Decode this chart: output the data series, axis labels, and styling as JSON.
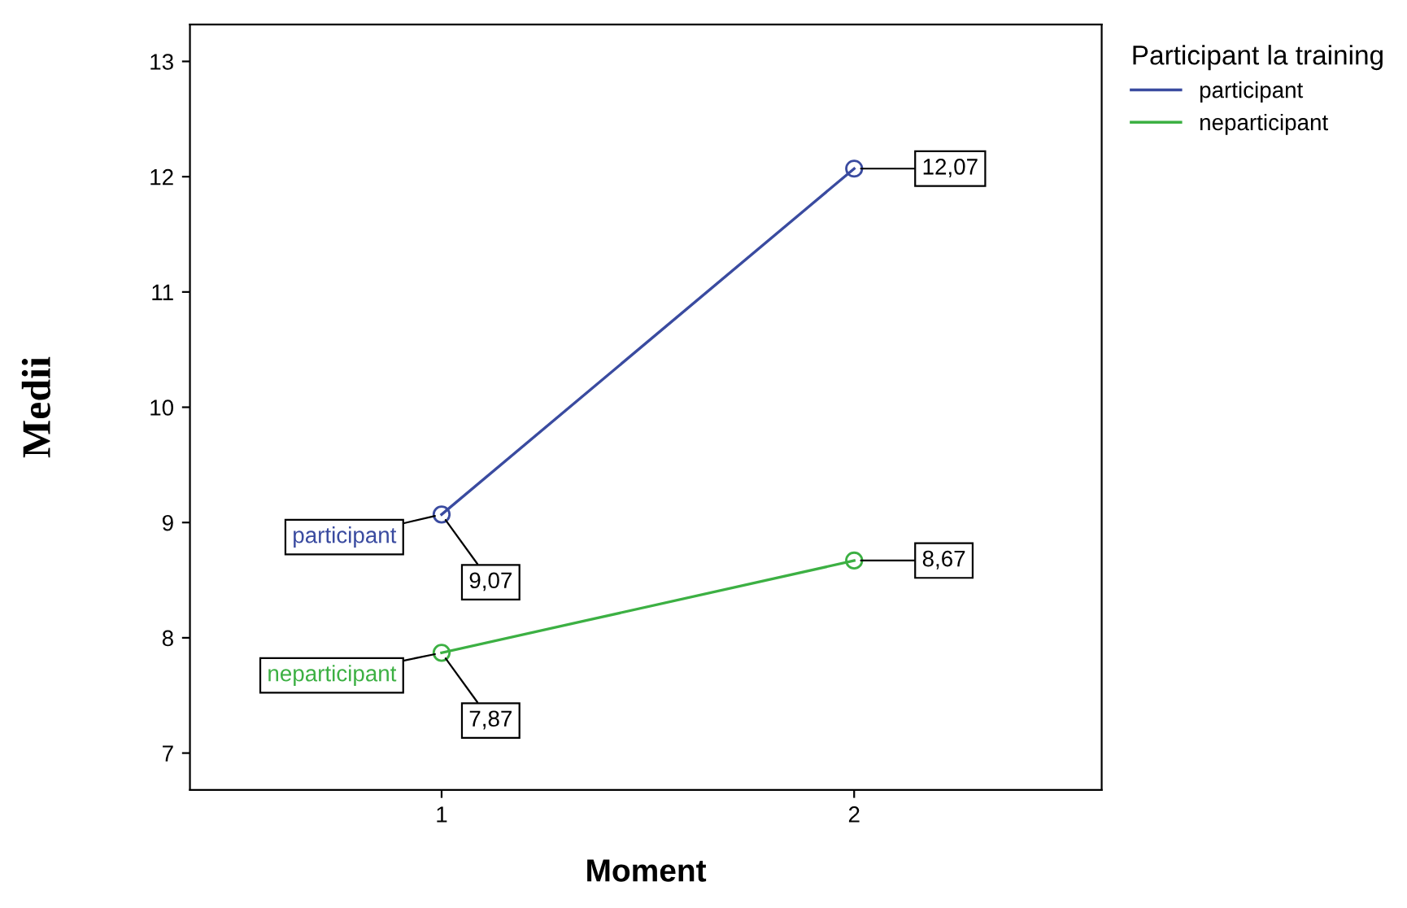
{
  "chart_data": {
    "type": "line",
    "xlabel": "Moment",
    "ylabel": "Medii",
    "legend_title": "Participant la training",
    "x": [
      1,
      2
    ],
    "series": [
      {
        "name": "participant",
        "color": "#3a4ba0",
        "values": [
          9.07,
          12.07
        ],
        "value_labels": [
          "9,07",
          "12,07"
        ]
      },
      {
        "name": "neparticipant",
        "color": "#3cb043",
        "values": [
          7.87,
          8.67
        ],
        "value_labels": [
          "7,87",
          "8,67"
        ]
      }
    ],
    "xlim": [
      0.39,
      2.6
    ],
    "xticks": [
      1,
      2
    ],
    "ylim": [
      6.68,
      13.32
    ],
    "yticks": [
      7,
      8,
      9,
      10,
      11,
      12,
      13
    ],
    "marker": "circle",
    "line_style": "solid",
    "grid": false,
    "legend": "top right"
  }
}
